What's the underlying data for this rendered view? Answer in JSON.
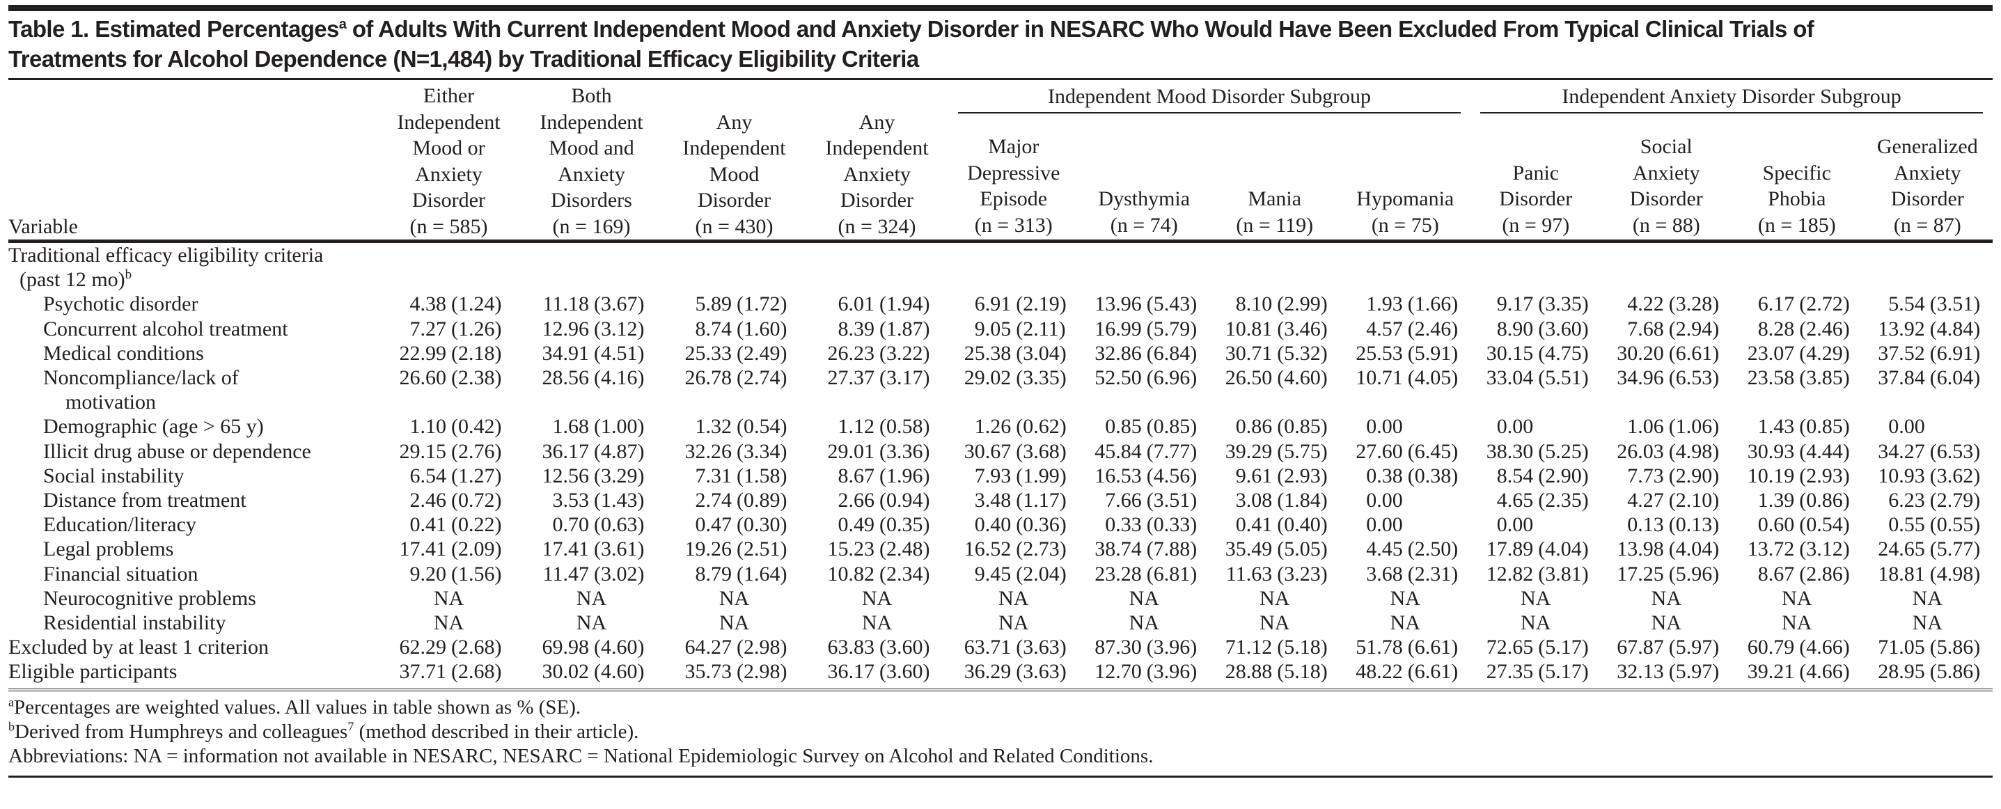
{
  "title": {
    "prefix": "Table 1. Estimated Percentages",
    "sup": "a",
    "line1_rest": " of Adults With Current Independent Mood and Anxiety Disorder in NESARC Who Would Have Been Excluded From Typical Clinical Trials of",
    "line2": "Treatments for Alcohol Dependence (N=1,484) by Traditional Efficacy Eligibility Criteria"
  },
  "header": {
    "variable": "Variable",
    "spanners": [
      "Independent Mood Disorder Subgroup",
      "Independent Anxiety Disorder Subgroup"
    ],
    "columns": [
      {
        "label": "Either\nIndependent\nMood or\nAnxiety\nDisorder",
        "n": "(n = 585)"
      },
      {
        "label": "Both\nIndependent\nMood and\nAnxiety\nDisorders",
        "n": "(n = 169)"
      },
      {
        "label": "Any\nIndependent\nMood\nDisorder",
        "n": "(n = 430)"
      },
      {
        "label": "Any\nIndependent\nAnxiety\nDisorder",
        "n": "(n = 324)"
      },
      {
        "label": "Major\nDepressive\nEpisode",
        "n": "(n = 313)"
      },
      {
        "label": "Dysthymia",
        "n": "(n = 74)"
      },
      {
        "label": "Mania",
        "n": "(n = 119)"
      },
      {
        "label": "Hypomania",
        "n": "(n = 75)"
      },
      {
        "label": "Panic\nDisorder",
        "n": "(n = 97)"
      },
      {
        "label": "Social\nAnxiety\nDisorder",
        "n": "(n = 88)"
      },
      {
        "label": "Specific\nPhobia",
        "n": "(n = 185)"
      },
      {
        "label": "Generalized\nAnxiety\nDisorder",
        "n": "(n = 87)"
      }
    ]
  },
  "section": {
    "label": "Traditional efficacy eligibility criteria",
    "label2": "(past 12 mo)",
    "sup": "b"
  },
  "rows": [
    {
      "label": "Psychotic disorder",
      "level": 2,
      "values": [
        "4.38 (1.24)",
        "11.18 (3.67)",
        "5.89 (1.72)",
        "6.01 (1.94)",
        "6.91 (2.19)",
        "13.96 (5.43)",
        "8.10 (2.99)",
        "1.93 (1.66)",
        "9.17 (3.35)",
        "4.22 (3.28)",
        "6.17 (2.72)",
        "5.54 (3.51)"
      ]
    },
    {
      "label": "Concurrent alcohol treatment",
      "level": 2,
      "values": [
        "7.27 (1.26)",
        "12.96 (3.12)",
        "8.74 (1.60)",
        "8.39 (1.87)",
        "9.05 (2.11)",
        "16.99 (5.79)",
        "10.81 (3.46)",
        "4.57 (2.46)",
        "8.90 (3.60)",
        "7.68 (2.94)",
        "8.28 (2.46)",
        "13.92 (4.84)"
      ]
    },
    {
      "label": "Medical conditions",
      "level": 2,
      "values": [
        "22.99 (2.18)",
        "34.91 (4.51)",
        "25.33 (2.49)",
        "26.23 (3.22)",
        "25.38 (3.04)",
        "32.86 (6.84)",
        "30.71 (5.32)",
        "25.53 (5.91)",
        "30.15 (4.75)",
        "30.20 (6.61)",
        "23.07 (4.29)",
        "37.52 (6.91)"
      ]
    },
    {
      "label": "Noncompliance/lack of",
      "label2": "motivation",
      "level": 2,
      "values": [
        "26.60 (2.38)",
        "28.56 (4.16)",
        "26.78 (2.74)",
        "27.37 (3.17)",
        "29.02 (3.35)",
        "52.50 (6.96)",
        "26.50 (4.60)",
        "10.71 (4.05)",
        "33.04 (5.51)",
        "34.96 (6.53)",
        "23.58 (3.85)",
        "37.84 (6.04)"
      ]
    },
    {
      "label": "Demographic (age > 65 y)",
      "level": 2,
      "values": [
        "1.10 (0.42)",
        "1.68 (1.00)",
        "1.32 (0.54)",
        "1.12 (0.58)",
        "1.26 (0.62)",
        "0.85 (0.85)",
        "0.86 (0.85)",
        "0.00",
        "0.00",
        "1.06 (1.06)",
        "1.43 (0.85)",
        "0.00"
      ]
    },
    {
      "label": "Illicit drug abuse or dependence",
      "level": 2,
      "values": [
        "29.15 (2.76)",
        "36.17 (4.87)",
        "32.26 (3.34)",
        "29.01 (3.36)",
        "30.67 (3.68)",
        "45.84 (7.77)",
        "39.29 (5.75)",
        "27.60 (6.45)",
        "38.30 (5.25)",
        "26.03 (4.98)",
        "30.93 (4.44)",
        "34.27 (6.53)"
      ]
    },
    {
      "label": "Social instability",
      "level": 2,
      "values": [
        "6.54 (1.27)",
        "12.56 (3.29)",
        "7.31 (1.58)",
        "8.67 (1.96)",
        "7.93 (1.99)",
        "16.53 (4.56)",
        "9.61 (2.93)",
        "0.38 (0.38)",
        "8.54 (2.90)",
        "7.73 (2.90)",
        "10.19 (2.93)",
        "10.93 (3.62)"
      ]
    },
    {
      "label": "Distance from treatment",
      "level": 2,
      "values": [
        "2.46 (0.72)",
        "3.53 (1.43)",
        "2.74 (0.89)",
        "2.66 (0.94)",
        "3.48 (1.17)",
        "7.66 (3.51)",
        "3.08 (1.84)",
        "0.00",
        "4.65 (2.35)",
        "4.27 (2.10)",
        "1.39 (0.86)",
        "6.23 (2.79)"
      ]
    },
    {
      "label": "Education/literacy",
      "level": 2,
      "values": [
        "0.41 (0.22)",
        "0.70 (0.63)",
        "0.47 (0.30)",
        "0.49 (0.35)",
        "0.40 (0.36)",
        "0.33 (0.33)",
        "0.41 (0.40)",
        "0.00",
        "0.00",
        "0.13 (0.13)",
        "0.60 (0.54)",
        "0.55 (0.55)"
      ]
    },
    {
      "label": "Legal problems",
      "level": 2,
      "values": [
        "17.41 (2.09)",
        "17.41 (3.61)",
        "19.26 (2.51)",
        "15.23 (2.48)",
        "16.52 (2.73)",
        "38.74 (7.88)",
        "35.49 (5.05)",
        "4.45 (2.50)",
        "17.89 (4.04)",
        "13.98 (4.04)",
        "13.72 (3.12)",
        "24.65 (5.77)"
      ]
    },
    {
      "label": "Financial situation",
      "level": 2,
      "values": [
        "9.20 (1.56)",
        "11.47 (3.02)",
        "8.79 (1.64)",
        "10.82 (2.34)",
        "9.45 (2.04)",
        "23.28 (6.81)",
        "11.63 (3.23)",
        "3.68 (2.31)",
        "12.82 (3.81)",
        "17.25 (5.96)",
        "8.67 (2.86)",
        "18.81 (4.98)"
      ]
    },
    {
      "label": "Neurocognitive problems",
      "level": 2,
      "values": [
        "NA",
        "NA",
        "NA",
        "NA",
        "NA",
        "NA",
        "NA",
        "NA",
        "NA",
        "NA",
        "NA",
        "NA"
      ]
    },
    {
      "label": "Residential instability",
      "level": 2,
      "values": [
        "NA",
        "NA",
        "NA",
        "NA",
        "NA",
        "NA",
        "NA",
        "NA",
        "NA",
        "NA",
        "NA",
        "NA"
      ]
    },
    {
      "label": "Excluded by at least 1 criterion",
      "level": 0,
      "values": [
        "62.29 (2.68)",
        "69.98 (4.60)",
        "64.27 (2.98)",
        "63.83 (3.60)",
        "63.71 (3.63)",
        "87.30 (3.96)",
        "71.12 (5.18)",
        "51.78 (6.61)",
        "72.65 (5.17)",
        "67.87 (5.97)",
        "60.79 (4.66)",
        "71.05 (5.86)"
      ]
    },
    {
      "label": "Eligible participants",
      "level": 0,
      "values": [
        "37.71 (2.68)",
        "30.02 (4.60)",
        "35.73 (2.98)",
        "36.17 (3.60)",
        "36.29 (3.63)",
        "12.70 (3.96)",
        "28.88 (5.18)",
        "48.22 (6.61)",
        "27.35 (5.17)",
        "32.13 (5.97)",
        "39.21 (4.66)",
        "28.95 (5.86)"
      ]
    }
  ],
  "footnotes": {
    "a_mark": "a",
    "a_text": "Percentages are weighted values. All values in table shown as % (SE).",
    "b_mark": "b",
    "b_text": "Derived from Humphreys and colleagues",
    "b_ref": "7",
    "b_rest": " (method described in their article).",
    "abbrev": "Abbreviations: NA = information not available in NESARC, NESARC = National Epidemiologic Survey on Alcohol and Related Conditions."
  }
}
